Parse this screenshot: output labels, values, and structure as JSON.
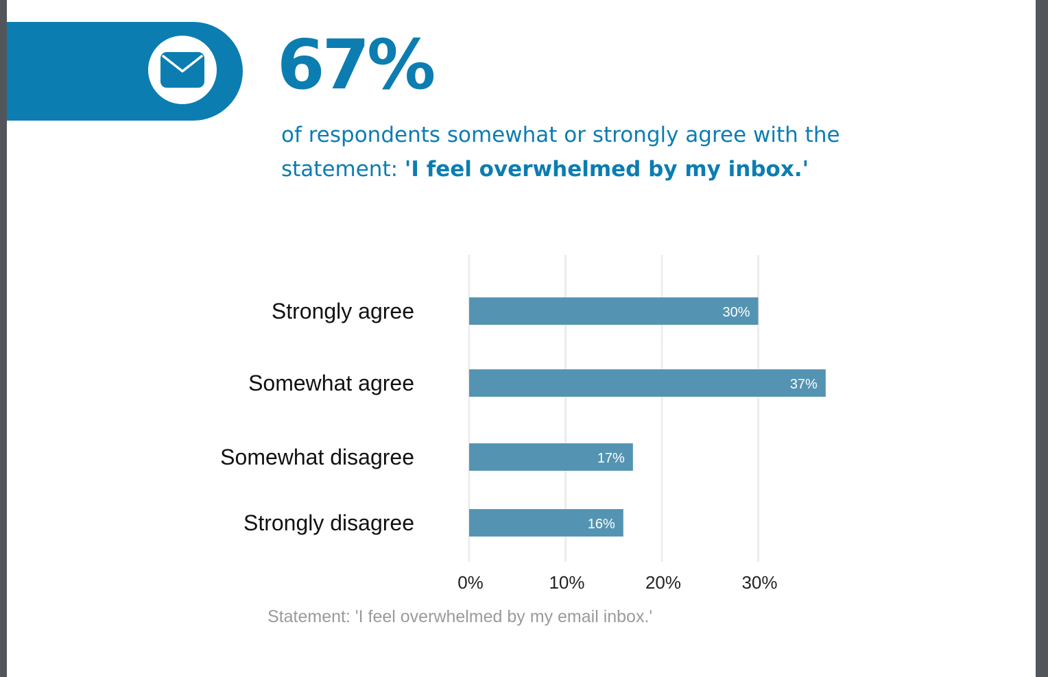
{
  "header": {
    "stat": "67%",
    "subtitle_plain": "of respondents somewhat or strongly agree with the statement: ",
    "subtitle_bold": "'I feel overwhelmed by my inbox.'",
    "icon": "envelope-icon"
  },
  "colors": {
    "accent": "#0b7db1",
    "bar": "#5494b2",
    "grid": "#ececec"
  },
  "chart_data": {
    "type": "bar",
    "orientation": "horizontal",
    "categories": [
      "Strongly agree",
      "Somewhat agree",
      "Somewhat disagree",
      "Strongly disagree"
    ],
    "values": [
      30,
      37,
      17,
      16
    ],
    "value_labels": [
      "30%",
      "37%",
      "17%",
      "16%"
    ],
    "x_ticks": [
      0,
      10,
      20,
      30
    ],
    "x_tick_labels": [
      "0%",
      "10%",
      "20%",
      "30%"
    ],
    "xlim": [
      0,
      40
    ],
    "title": "",
    "xlabel": "",
    "ylabel": "",
    "grid": true
  },
  "footnote": "Statement: 'I feel overwhelmed by my email inbox.'"
}
